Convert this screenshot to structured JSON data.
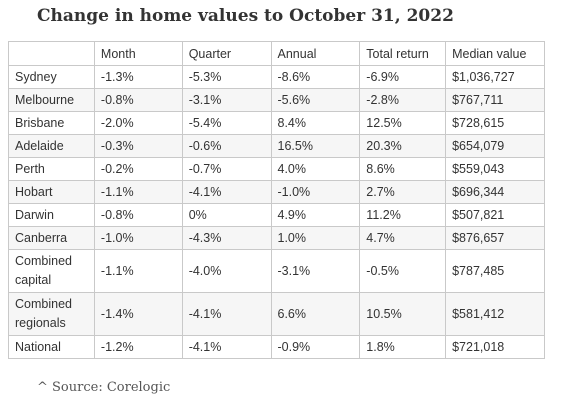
{
  "title": "Change in home values to October 31, 2022",
  "table": {
    "headers": [
      "",
      "Month",
      "Quarter",
      "Annual",
      "Total return",
      "Median value"
    ],
    "rows": [
      {
        "city": "Sydney",
        "cells": [
          "-1.3%",
          "-5.3%",
          "-8.6%",
          "-6.9%",
          "$1,036,727"
        ]
      },
      {
        "city": "Melbourne",
        "cells": [
          "-0.8%",
          "-3.1%",
          "-5.6%",
          "-2.8%",
          "$767,711"
        ]
      },
      {
        "city": "Brisbane",
        "cells": [
          "-2.0%",
          "-5.4%",
          "8.4%",
          "12.5%",
          "$728,615"
        ]
      },
      {
        "city": "Adelaide",
        "cells": [
          "-0.3%",
          "-0.6%",
          "16.5%",
          "20.3%",
          "$654,079"
        ]
      },
      {
        "city": "Perth",
        "cells": [
          "-0.2%",
          "-0.7%",
          "4.0%",
          "8.6%",
          "$559,043"
        ]
      },
      {
        "city": "Hobart",
        "cells": [
          "-1.1%",
          "-4.1%",
          "-1.0%",
          "2.7%",
          "$696,344"
        ]
      },
      {
        "city": "Darwin",
        "cells": [
          "-0.8%",
          "0%",
          "4.9%",
          "11.2%",
          "$507,821"
        ]
      },
      {
        "city": "Canberra",
        "cells": [
          "-1.0%",
          "-4.3%",
          "1.0%",
          "4.7%",
          "$876,657"
        ]
      },
      {
        "city_lines": [
          "Combined",
          "capital"
        ],
        "cells": [
          "-1.1%",
          "-4.0%",
          "-3.1%",
          "-0.5%",
          "$787,485"
        ]
      },
      {
        "city_lines": [
          "Combined",
          "regionals"
        ],
        "cells": [
          "-1.4%",
          "-4.1%",
          "6.6%",
          "10.5%",
          "$581,412"
        ]
      },
      {
        "city": "National",
        "cells": [
          "-1.2%",
          "-4.1%",
          "-0.9%",
          "1.8%",
          "$721,018"
        ]
      }
    ]
  },
  "source": "^ Source: Corelogic"
}
